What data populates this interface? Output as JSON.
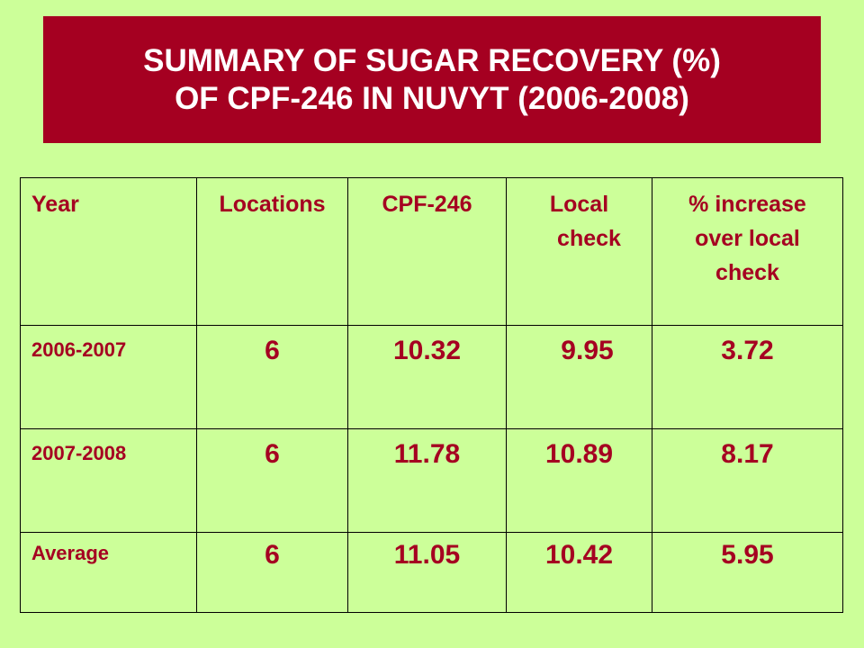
{
  "title": {
    "line1": "SUMMARY OF SUGAR RECOVERY (%)",
    "line2": "OF CPF-246 IN NUVYT (2006-2008)"
  },
  "table": {
    "headers": {
      "year": "Year",
      "locations": "Locations",
      "cpf": "CPF-246",
      "local_check_line1": "Local",
      "local_check_line2": "check",
      "increase_line1": "% increase",
      "increase_line2": "over local",
      "increase_line3": "check"
    },
    "rows": [
      {
        "year": "2006-2007",
        "locations": "6",
        "cpf": "10.32",
        "local_check": "9.95",
        "increase": "3.72"
      },
      {
        "year": "2007-2008",
        "locations": "6",
        "cpf": "11.78",
        "local_check": "10.89",
        "increase": "8.17"
      },
      {
        "year": "Average",
        "locations": "6",
        "cpf": "11.05",
        "local_check": "10.42",
        "increase": "5.95"
      }
    ]
  },
  "colors": {
    "background": "#CCFF99",
    "title_bg": "#A50021",
    "title_text": "#FFFFFF",
    "table_text": "#A50021"
  }
}
